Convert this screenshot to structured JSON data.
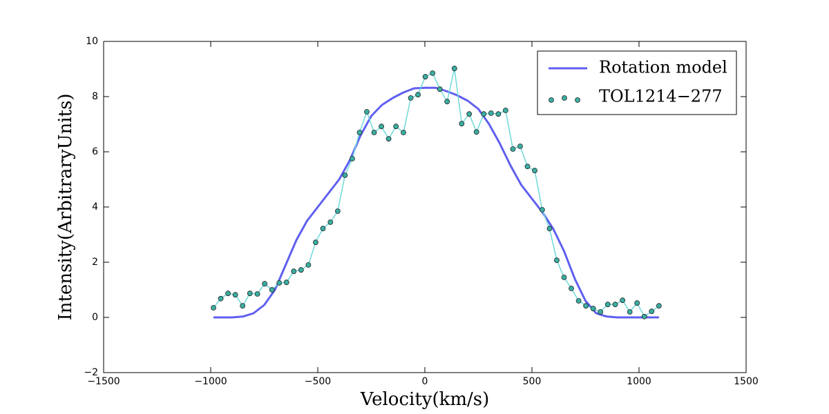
{
  "chart_data": {
    "type": "line",
    "xlabel": "Velocity(km/s)",
    "ylabel": "Intensity(ArbitraryUnits)",
    "xlim": [
      -1500,
      1500
    ],
    "xticks": [
      {
        "value": -1500,
        "label": "−1500"
      },
      {
        "value": -1000,
        "label": "−1000"
      },
      {
        "value": -500,
        "label": "−500"
      },
      0,
      500,
      1000,
      1500
    ],
    "ylim": [
      -2,
      10
    ],
    "yticks": [
      {
        "value": -2,
        "label": "−2"
      },
      0,
      2,
      4,
      6,
      8,
      10
    ],
    "legend": "upper right",
    "series": [
      {
        "name": "Rotation model",
        "style": "line",
        "color": "#5f5ff0",
        "x": [
          -987,
          -900,
          -850,
          -800,
          -750,
          -700,
          -650,
          -600,
          -550,
          -500,
          -450,
          -400,
          -350,
          -300,
          -250,
          -200,
          -150,
          -100,
          -50,
          0,
          50,
          100,
          150,
          200,
          250,
          300,
          350,
          400,
          450,
          500,
          550,
          600,
          650,
          700,
          750,
          800,
          850,
          900,
          1000,
          1093
        ],
        "values": [
          0,
          0,
          0.03,
          0.15,
          0.45,
          1.0,
          1.9,
          2.8,
          3.5,
          4.0,
          4.5,
          5.0,
          5.7,
          6.6,
          7.3,
          7.7,
          7.95,
          8.15,
          8.3,
          8.32,
          8.32,
          8.2,
          8.05,
          7.85,
          7.55,
          7.0,
          6.3,
          5.5,
          4.8,
          4.3,
          3.8,
          3.2,
          2.4,
          1.4,
          0.6,
          0.15,
          0.03,
          0,
          0,
          0
        ]
      },
      {
        "name": "TOL1214−277",
        "style": "markers",
        "color": "#3aaea2",
        "line_color": "#6fd8d8",
        "x": [
          -987,
          -953,
          -919,
          -885,
          -851,
          -817,
          -782,
          -748,
          -714,
          -680,
          -646,
          -612,
          -578,
          -544,
          -510,
          -476,
          -441,
          -407,
          -373,
          -339,
          -305,
          -271,
          -237,
          -203,
          -169,
          -135,
          -100,
          -66,
          -32,
          2,
          36,
          70,
          104,
          138,
          172,
          207,
          241,
          275,
          309,
          343,
          377,
          411,
          445,
          479,
          513,
          548,
          582,
          616,
          650,
          684,
          718,
          752,
          786,
          820,
          854,
          889,
          923,
          957,
          991,
          1025,
          1059,
          1093
        ],
        "values": [
          0.35,
          0.68,
          0.87,
          0.82,
          0.42,
          0.87,
          0.85,
          1.22,
          1.0,
          1.25,
          1.27,
          1.67,
          1.72,
          1.9,
          2.72,
          3.22,
          3.45,
          3.85,
          5.15,
          5.75,
          6.7,
          7.45,
          6.7,
          6.92,
          6.47,
          6.92,
          6.7,
          7.95,
          8.07,
          8.72,
          8.85,
          8.27,
          7.82,
          9.02,
          7.02,
          7.37,
          6.72,
          7.37,
          7.4,
          7.37,
          7.5,
          6.1,
          6.2,
          5.47,
          5.32,
          3.9,
          3.22,
          2.07,
          1.45,
          1.05,
          0.6,
          0.42,
          0.32,
          0.2,
          0.47,
          0.47,
          0.62,
          0.2,
          0.52,
          0.03,
          0.22,
          0.42
        ]
      }
    ]
  }
}
